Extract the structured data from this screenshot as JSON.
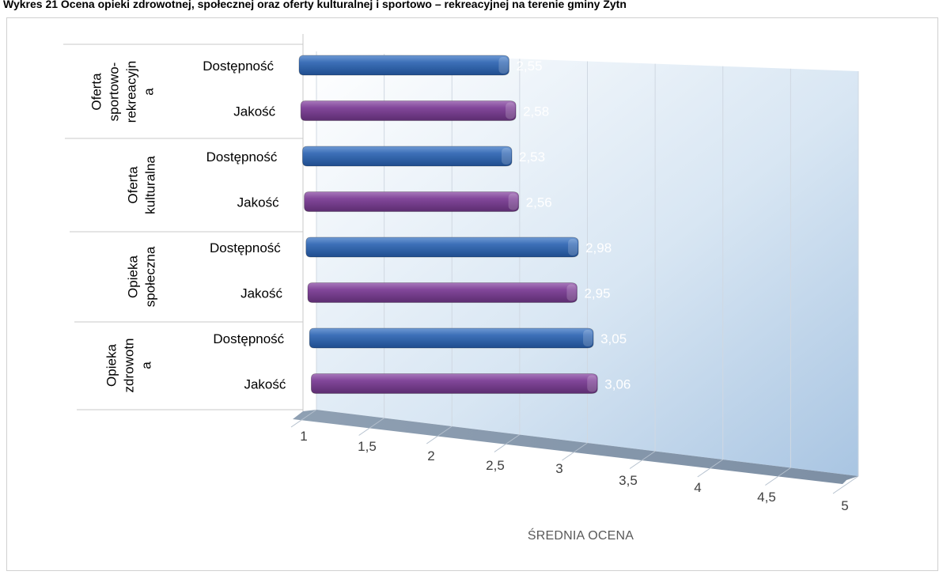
{
  "title": "Wykres 21 Ocena opieki zdrowotnej, społecznej oraz oferty kulturalnej i sportowo – rekreacyjnej na terenie gminy Żytn",
  "chart_data": {
    "type": "bar",
    "orientation": "horizontal",
    "style": "3d-cylinder",
    "groups": [
      {
        "lines": [
          "Oferta",
          "sportowo-",
          "rekreacyjn",
          "a"
        ]
      },
      {
        "lines": [
          "Oferta",
          "kulturalna"
        ]
      },
      {
        "lines": [
          "Opieka",
          "społeczna"
        ]
      },
      {
        "lines": [
          "Opieka",
          "zdrowotn",
          "a"
        ]
      }
    ],
    "bars": [
      {
        "group": 0,
        "category": "Dostępność",
        "value": 2.55,
        "label": "2,55"
      },
      {
        "group": 0,
        "category": "Jakość",
        "value": 2.58,
        "label": "2,58"
      },
      {
        "group": 1,
        "category": "Dostępność",
        "value": 2.53,
        "label": "2,53"
      },
      {
        "group": 1,
        "category": "Jakość",
        "value": 2.56,
        "label": "2,56"
      },
      {
        "group": 2,
        "category": "Dostępność",
        "value": 2.98,
        "label": "2,98"
      },
      {
        "group": 2,
        "category": "Jakość",
        "value": 2.95,
        "label": "2,95"
      },
      {
        "group": 3,
        "category": "Dostępność",
        "value": 3.05,
        "label": "3,05"
      },
      {
        "group": 3,
        "category": "Jakość",
        "value": 3.06,
        "label": "3,06"
      }
    ],
    "xlim": [
      1,
      5
    ],
    "xticks": [
      {
        "v": 1,
        "label": "1"
      },
      {
        "v": 1.5,
        "label": "1,5"
      },
      {
        "v": 2,
        "label": "2"
      },
      {
        "v": 2.5,
        "label": "2,5"
      },
      {
        "v": 3,
        "label": "3"
      },
      {
        "v": 3.5,
        "label": "3,5"
      },
      {
        "v": 4,
        "label": "4"
      },
      {
        "v": 4.5,
        "label": "4,5"
      },
      {
        "v": 5,
        "label": "5"
      }
    ],
    "xlabel": "ŚREDNIA OCENA",
    "colors": {
      "Dostępność": "#2e63a8",
      "Jakość": "#7a3f8e"
    }
  }
}
